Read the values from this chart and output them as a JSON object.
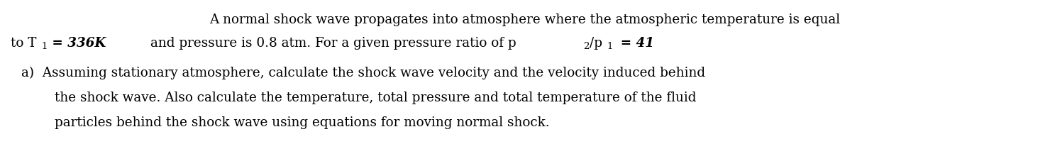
{
  "figsize": [
    14.8,
    2.34
  ],
  "dpi": 100,
  "bg_color": "#ffffff",
  "text_color": "#000000",
  "font_size": 13.2,
  "font_family": "DejaVu Serif",
  "line1": "A normal shock wave propagates into atmosphere where the atmospheric temperature is equal",
  "line2a": "to T",
  "line2_sub1": "1",
  "line2b": " = 336K",
  "line2c": "        and pressure is 0.8 atm. For a given pressure ratio of p",
  "line2_sub2": "2",
  "line2d": "/p",
  "line2_sub3": "1",
  "line2e": "  = 41",
  "line3": "a)  Assuming stationary atmosphere, calculate the shock wave velocity and the velocity induced behind",
  "line4": "        the shock wave. Also calculate the temperature, total pressure and total temperature of the fluid",
  "line5": "        particles behind the shock wave using equations for moving normal shock."
}
